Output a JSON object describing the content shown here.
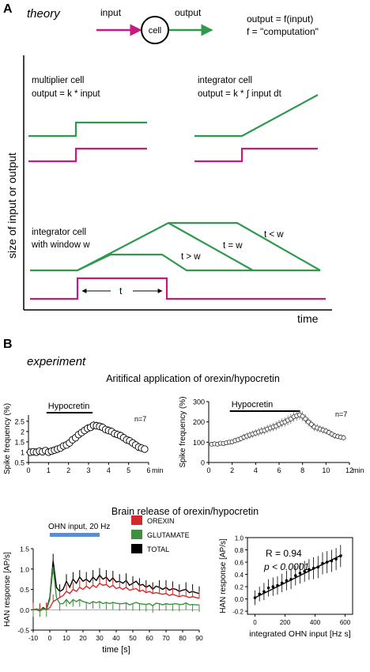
{
  "panel_a": {
    "letter": "A",
    "theory_label": "theory",
    "input_label": "input",
    "cell_label": "cell",
    "output_label": "output",
    "formula_1": "output = f(input)",
    "formula_2": "f = \"computation\"",
    "y_axis_label": "size of input or output",
    "x_axis_label": "time",
    "multiplier_title": "multiplier cell",
    "multiplier_formula": "output = k * input",
    "integrator_title": "integrator cell",
    "integrator_formula": "output = k * ∫ input dt",
    "window_title_1": "integrator cell",
    "window_title_2": "with window w",
    "label_t_gt_w": "t > w",
    "label_t_eq_w": "t = w",
    "label_t_lt_w": "t < w",
    "label_t": "t",
    "colors": {
      "input": "#c8197e",
      "output": "#2f9a4e"
    }
  },
  "panel_b": {
    "letter": "B",
    "experiment_label": "experiment",
    "artificial_title": "Aritifical application of orexin/hypocretin",
    "brain_title": "Brain release of orexin/hypocretin",
    "colors": {
      "orexin": "#d22a2a",
      "glutamate": "#3f8f3f",
      "total": "#000000",
      "bar": "#5b8dd0"
    }
  },
  "chart_data": [
    {
      "type": "scatter",
      "id": "spike-left",
      "title": "",
      "xlabel": "min",
      "ylabel": "Spike frequency (%)",
      "xlim": [
        0,
        6
      ],
      "ylim": [
        0.5,
        2.8
      ],
      "xticks": [
        "0",
        "1",
        "2",
        "3",
        "4",
        "5",
        "6"
      ],
      "yticks": [
        "0.5",
        "1",
        "1.5",
        "2",
        "2.5"
      ],
      "annotation": "n=7",
      "bar_label": "Hypocretin",
      "bar_range": [
        0.9,
        3.2
      ],
      "x": [
        0.1,
        0.25,
        0.4,
        0.55,
        0.7,
        0.85,
        1.0,
        1.15,
        1.3,
        1.45,
        1.6,
        1.75,
        1.9,
        2.05,
        2.2,
        2.35,
        2.5,
        2.65,
        2.8,
        2.95,
        3.1,
        3.25,
        3.4,
        3.55,
        3.7,
        3.85,
        4.0,
        4.15,
        4.3,
        4.45,
        4.6,
        4.75,
        4.9,
        5.05,
        5.2,
        5.35,
        5.5,
        5.65,
        5.8
      ],
      "y": [
        1.0,
        1.02,
        1.0,
        1.05,
        1.02,
        1.08,
        1.0,
        1.05,
        1.1,
        1.15,
        1.2,
        1.3,
        1.35,
        1.45,
        1.6,
        1.7,
        1.85,
        1.95,
        2.05,
        2.15,
        2.2,
        2.3,
        2.28,
        2.25,
        2.2,
        2.1,
        2.05,
        2.0,
        1.9,
        1.85,
        1.8,
        1.7,
        1.6,
        1.55,
        1.45,
        1.35,
        1.25,
        1.2,
        1.15
      ],
      "err": [
        0.08,
        0.08,
        0.08,
        0.09,
        0.09,
        0.1,
        0.1,
        0.1,
        0.11,
        0.12,
        0.12,
        0.13,
        0.14,
        0.15,
        0.16,
        0.17,
        0.18,
        0.18,
        0.19,
        0.2,
        0.2,
        0.2,
        0.2,
        0.2,
        0.2,
        0.2,
        0.2,
        0.2,
        0.2,
        0.2,
        0.2,
        0.2,
        0.2,
        0.2,
        0.2,
        0.19,
        0.18,
        0.17,
        0.16
      ]
    },
    {
      "type": "scatter",
      "id": "spike-right",
      "title": "",
      "xlabel": "min",
      "ylabel": "Spike frequency (%)",
      "xlim": [
        0,
        12
      ],
      "ylim": [
        0,
        300
      ],
      "xticks": [
        "0",
        "2",
        "4",
        "6",
        "8",
        "10",
        "12"
      ],
      "yticks": [
        "0",
        "100",
        "200",
        "300"
      ],
      "annotation": "n=7",
      "bar_label": "Hypocretin",
      "bar_range": [
        1.8,
        7.8
      ],
      "x": [
        0.25,
        0.5,
        0.75,
        1.0,
        1.25,
        1.5,
        1.75,
        2.0,
        2.25,
        2.5,
        2.75,
        3.0,
        3.25,
        3.5,
        3.75,
        4.0,
        4.25,
        4.5,
        4.75,
        5.0,
        5.25,
        5.5,
        5.75,
        6.0,
        6.25,
        6.5,
        6.75,
        7.0,
        7.25,
        7.5,
        7.75,
        8.0,
        8.25,
        8.5,
        8.75,
        9.0,
        9.25,
        9.5,
        9.75,
        10.0,
        10.25,
        10.5,
        10.75,
        11.0,
        11.25,
        11.5
      ],
      "y": [
        90,
        92,
        90,
        95,
        93,
        97,
        100,
        102,
        108,
        112,
        118,
        125,
        130,
        135,
        140,
        145,
        150,
        155,
        158,
        165,
        170,
        175,
        180,
        188,
        195,
        200,
        208,
        215,
        225,
        230,
        235,
        228,
        215,
        200,
        188,
        175,
        170,
        165,
        160,
        155,
        148,
        140,
        132,
        128,
        125,
        122
      ],
      "err": [
        10,
        10,
        10,
        10,
        10,
        10,
        12,
        12,
        14,
        15,
        15,
        16,
        18,
        18,
        18,
        18,
        20,
        20,
        20,
        20,
        20,
        20,
        22,
        22,
        22,
        22,
        24,
        24,
        24,
        24,
        24,
        24,
        22,
        22,
        20,
        20,
        20,
        18,
        18,
        16,
        16,
        15,
        15,
        14,
        14,
        14
      ]
    },
    {
      "type": "line",
      "id": "han-trace",
      "title": "",
      "xlabel": "time [s]",
      "ylabel": "HAN response [AP/s]",
      "xlim": [
        -10,
        90
      ],
      "ylim": [
        -0.5,
        1.5
      ],
      "xticks": [
        "-10",
        "0",
        "10",
        "20",
        "30",
        "40",
        "50",
        "60",
        "70",
        "80",
        "90"
      ],
      "yticks": [
        "-0.5",
        "0.0",
        "0.5",
        "1.0",
        "1.5"
      ],
      "bar_label": "OHN input, 20 Hz",
      "bar_range": [
        0,
        30
      ],
      "legend": [
        "OREXIN",
        "GLUTAMATE",
        "TOTAL"
      ],
      "x": [
        -10,
        -8,
        -6,
        -4,
        -2,
        0,
        2,
        4,
        6,
        8,
        10,
        12,
        14,
        16,
        18,
        20,
        22,
        24,
        26,
        28,
        30,
        32,
        34,
        36,
        38,
        40,
        42,
        44,
        46,
        48,
        50,
        52,
        54,
        56,
        58,
        60,
        62,
        64,
        66,
        68,
        70,
        72,
        74,
        76,
        78,
        80,
        82,
        84,
        86,
        88,
        90
      ],
      "series": [
        {
          "name": "TOTAL",
          "values": [
            0.0,
            0.02,
            -0.02,
            0.05,
            0.0,
            0.3,
            1.2,
            0.55,
            0.45,
            0.5,
            0.7,
            0.55,
            0.75,
            0.65,
            0.8,
            0.7,
            0.75,
            0.68,
            0.8,
            0.72,
            0.85,
            0.75,
            0.8,
            0.7,
            0.78,
            0.68,
            0.7,
            0.65,
            0.72,
            0.6,
            0.65,
            0.7,
            0.6,
            0.62,
            0.55,
            0.6,
            0.5,
            0.58,
            0.55,
            0.5,
            0.55,
            0.48,
            0.52,
            0.5,
            0.45,
            0.48,
            0.5,
            0.42,
            0.45,
            0.42,
            0.4
          ]
        },
        {
          "name": "OREXIN",
          "values": [
            0.0,
            0.0,
            -0.03,
            0.02,
            0.0,
            0.05,
            0.2,
            0.25,
            0.3,
            0.35,
            0.45,
            0.4,
            0.5,
            0.45,
            0.55,
            0.5,
            0.58,
            0.52,
            0.6,
            0.55,
            0.65,
            0.6,
            0.62,
            0.55,
            0.6,
            0.52,
            0.55,
            0.5,
            0.55,
            0.48,
            0.5,
            0.52,
            0.45,
            0.48,
            0.42,
            0.45,
            0.4,
            0.42,
            0.4,
            0.38,
            0.4,
            0.35,
            0.38,
            0.35,
            0.32,
            0.35,
            0.33,
            0.3,
            0.32,
            0.3,
            0.28
          ]
        },
        {
          "name": "GLUTAMATE",
          "values": [
            0.0,
            0.02,
            0.0,
            0.03,
            0.0,
            0.25,
            1.05,
            0.3,
            0.15,
            0.15,
            0.25,
            0.15,
            0.25,
            0.2,
            0.25,
            0.2,
            0.18,
            0.15,
            0.2,
            0.17,
            0.2,
            0.15,
            0.18,
            0.15,
            0.18,
            0.16,
            0.15,
            0.15,
            0.17,
            0.12,
            0.15,
            0.18,
            0.15,
            0.14,
            0.13,
            0.15,
            0.1,
            0.16,
            0.15,
            0.12,
            0.15,
            0.13,
            0.14,
            0.15,
            0.13,
            0.13,
            0.17,
            0.12,
            0.13,
            0.12,
            0.12
          ]
        }
      ]
    },
    {
      "type": "scatter",
      "id": "han-correlation",
      "title": "",
      "xlabel": "integrated OHN input [Hz s]",
      "ylabel": "HAN response [AP/s]",
      "xlim": [
        -50,
        650
      ],
      "ylim": [
        -0.25,
        1.0
      ],
      "xticks": [
        "0",
        "200",
        "400",
        "600"
      ],
      "yticks": [
        "-0.2",
        "0.0",
        "0.2",
        "0.4",
        "0.6",
        "0.8",
        "1.0"
      ],
      "stat_r": "R = 0.94",
      "stat_p": "p < 0.0001",
      "x": [
        0,
        30,
        60,
        90,
        120,
        150,
        180,
        210,
        240,
        270,
        300,
        330,
        360,
        390,
        420,
        450,
        480,
        510,
        540,
        570
      ],
      "y": [
        0.02,
        0.08,
        0.12,
        0.18,
        0.2,
        0.22,
        0.26,
        0.3,
        0.32,
        0.38,
        0.42,
        0.45,
        0.48,
        0.5,
        0.52,
        0.58,
        0.6,
        0.62,
        0.65,
        0.7
      ],
      "err": [
        0.12,
        0.12,
        0.14,
        0.14,
        0.15,
        0.15,
        0.15,
        0.16,
        0.16,
        0.16,
        0.17,
        0.17,
        0.17,
        0.18,
        0.18,
        0.18,
        0.18,
        0.18,
        0.18,
        0.18
      ],
      "fit": [
        [
          0,
          0.02
        ],
        [
          580,
          0.72
        ]
      ]
    }
  ]
}
